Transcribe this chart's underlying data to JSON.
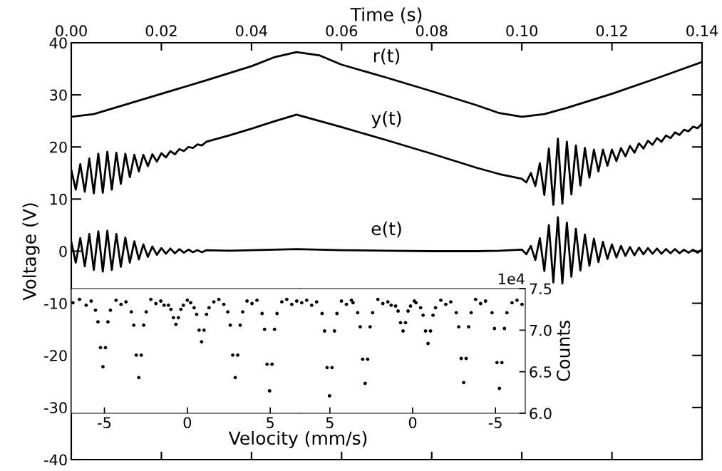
{
  "chart_data": [
    {
      "type": "line",
      "xlabel": "Time (s)",
      "ylabel": "Voltage (V)",
      "xlim": [
        0,
        0.14
      ],
      "xticks": [
        {
          "value": 0,
          "label": "0.00"
        },
        {
          "value": 0.02,
          "label": "0.02"
        },
        {
          "value": 0.04,
          "label": "0.04"
        },
        {
          "value": 0.06,
          "label": "0.06"
        },
        {
          "value": 0.08,
          "label": "0.08"
        },
        {
          "value": 0.1,
          "label": "0.10"
        },
        {
          "value": 0.12,
          "label": "0.12"
        },
        {
          "value": 0.14,
          "label": "0.14"
        }
      ],
      "ylim": [
        -40,
        40
      ],
      "yticks": [
        -40,
        -30,
        -20,
        -10,
        0,
        10,
        20,
        30,
        40
      ],
      "grid": false,
      "legend": false,
      "annotations": [
        "r(t)",
        "y(t)",
        "e(t)"
      ],
      "series": [
        {
          "color": "#000000",
          "x": [
            0,
            0.005,
            0.01,
            0.02,
            0.03,
            0.04,
            0.045,
            0.05,
            0.055,
            0.06,
            0.07,
            0.08,
            0.09,
            0.095,
            0.1,
            0.105,
            0.11,
            0.12,
            0.13,
            0.14
          ],
          "values": [
            25.8,
            26.3,
            27.6,
            30.2,
            32.8,
            35.5,
            37.2,
            38.2,
            37.6,
            35.8,
            33.3,
            30.7,
            28.0,
            26.5,
            25.8,
            26.3,
            27.5,
            30.2,
            33.2,
            36.3
          ]
        },
        {
          "color": "#000000",
          "x": [
            0,
            0.001,
            0.002,
            0.003,
            0.004,
            0.005,
            0.006,
            0.007,
            0.008,
            0.009,
            0.01,
            0.011,
            0.012,
            0.013,
            0.014,
            0.015,
            0.016,
            0.017,
            0.018,
            0.019,
            0.02,
            0.021,
            0.022,
            0.023,
            0.024,
            0.025,
            0.026,
            0.027,
            0.028,
            0.029,
            0.03,
            0.035,
            0.04,
            0.045,
            0.05,
            0.055,
            0.06,
            0.07,
            0.08,
            0.09,
            0.095,
            0.1,
            0.101,
            0.102,
            0.103,
            0.104,
            0.105,
            0.106,
            0.107,
            0.108,
            0.109,
            0.11,
            0.111,
            0.112,
            0.113,
            0.114,
            0.115,
            0.116,
            0.117,
            0.118,
            0.119,
            0.12,
            0.121,
            0.122,
            0.123,
            0.124,
            0.125,
            0.126,
            0.127,
            0.128,
            0.129,
            0.13,
            0.131,
            0.132,
            0.133,
            0.134,
            0.135,
            0.136,
            0.137,
            0.138,
            0.139,
            0.14
          ],
          "values": [
            15.6,
            11.8,
            16.7,
            11.4,
            17.8,
            11.1,
            18.7,
            11.2,
            19.1,
            11.8,
            18.9,
            12.9,
            18.7,
            14.2,
            18.5,
            15.3,
            18.5,
            16.3,
            18.6,
            17.2,
            18.8,
            18.0,
            19.2,
            18.6,
            19.6,
            19.2,
            20.0,
            19.8,
            20.5,
            20.3,
            21.0,
            22.2,
            23.5,
            24.9,
            26.2,
            25.0,
            23.8,
            21.3,
            18.7,
            16.0,
            14.8,
            13.9,
            13.2,
            15.0,
            12.5,
            16.9,
            10.8,
            19.7,
            8.9,
            21.6,
            9.1,
            21.0,
            10.9,
            20.3,
            12.6,
            19.8,
            14.1,
            19.5,
            15.3,
            19.5,
            16.4,
            19.5,
            17.3,
            19.8,
            18.2,
            20.2,
            18.9,
            20.7,
            19.7,
            21.2,
            20.4,
            21.7,
            21.0,
            22.2,
            21.7,
            22.8,
            22.3,
            23.3,
            23.0,
            23.9,
            23.6,
            24.5
          ]
        },
        {
          "color": "#000000",
          "x": [
            0,
            0.001,
            0.002,
            0.003,
            0.004,
            0.005,
            0.006,
            0.007,
            0.008,
            0.009,
            0.01,
            0.011,
            0.012,
            0.013,
            0.014,
            0.015,
            0.016,
            0.017,
            0.018,
            0.019,
            0.02,
            0.021,
            0.022,
            0.023,
            0.024,
            0.025,
            0.026,
            0.027,
            0.028,
            0.029,
            0.03,
            0.035,
            0.04,
            0.05,
            0.06,
            0.07,
            0.08,
            0.09,
            0.095,
            0.1,
            0.101,
            0.102,
            0.103,
            0.104,
            0.105,
            0.106,
            0.107,
            0.108,
            0.109,
            0.11,
            0.111,
            0.112,
            0.113,
            0.114,
            0.115,
            0.116,
            0.117,
            0.118,
            0.119,
            0.12,
            0.121,
            0.122,
            0.123,
            0.124,
            0.125,
            0.126,
            0.127,
            0.128,
            0.129,
            0.13,
            0.131,
            0.132,
            0.133,
            0.134,
            0.135,
            0.136,
            0.137,
            0.138,
            0.139,
            0.14
          ],
          "values": [
            1.8,
            -2.2,
            2.5,
            -2.9,
            3.3,
            -3.6,
            3.8,
            -3.9,
            3.9,
            -3.6,
            3.3,
            -3.0,
            2.6,
            -2.2,
            1.9,
            -1.6,
            1.3,
            -1.1,
            0.9,
            -0.7,
            0.6,
            -0.5,
            0.5,
            -0.4,
            0.4,
            -0.3,
            0.3,
            -0.2,
            0.2,
            -0.2,
            0.2,
            0.1,
            0.2,
            0.4,
            0.2,
            0.1,
            0,
            0,
            0.1,
            0.3,
            -0.6,
            1.0,
            -1.7,
            2.5,
            -3.8,
            5.0,
            -6.0,
            6.5,
            -6.2,
            5.5,
            -4.9,
            4.3,
            -3.7,
            3.2,
            -2.8,
            2.4,
            -2.1,
            1.8,
            -1.5,
            1.3,
            -1.2,
            1.0,
            -0.9,
            0.8,
            -0.8,
            0.7,
            -0.6,
            0.6,
            -0.5,
            0.5,
            -0.5,
            0.4,
            -0.4,
            0.4,
            -0.4,
            0.3,
            -0.3,
            0.3,
            -0.3,
            0.3
          ]
        }
      ]
    },
    {
      "type": "scatter",
      "xlabel": "Velocity (mm/s)",
      "marker": "circle",
      "grid": false,
      "legend": false,
      "tick_labels": "x",
      "xlim": [
        -7.0,
        6.8
      ],
      "xticks": [
        -5,
        0,
        5
      ],
      "ylim": [
        6.0,
        7.5
      ],
      "series": [
        {
          "color": "#000000",
          "x": [
            -6.9,
            -6.5,
            -6.1,
            -5.8,
            -4.3,
            -4.0,
            -3.7,
            -2.2,
            -1.9,
            -1.6,
            -1.4,
            0.0,
            0.2,
            1.6,
            1.9,
            2.2,
            3.6,
            3.9,
            4.2,
            5.7,
            6.0,
            6.3,
            6.6,
            -5.54,
            -5.39,
            -5.24,
            -5.09,
            -4.94,
            -4.79,
            -4.64,
            -3.38,
            -3.23,
            -3.08,
            -2.93,
            -2.78,
            -2.63,
            -2.48,
            -1.14,
            -0.99,
            -0.84,
            -0.69,
            -0.54,
            -0.39,
            -0.24,
            0.41,
            0.56,
            0.71,
            0.86,
            1.01,
            1.16,
            1.31,
            2.44,
            2.59,
            2.74,
            2.89,
            3.04,
            3.19,
            3.34,
            4.51,
            4.66,
            4.81,
            4.96,
            5.11,
            5.26,
            5.41
          ],
          "values": [
            7.33,
            7.37,
            7.3,
            7.35,
            7.36,
            7.31,
            7.34,
            7.37,
            7.32,
            7.35,
            7.3,
            7.36,
            7.33,
            7.34,
            7.37,
            7.31,
            7.35,
            7.32,
            7.36,
            7.34,
            7.37,
            7.31,
            7.35,
            7.24,
            7.1,
            6.79,
            6.56,
            6.79,
            7.1,
            7.24,
            7.22,
            7.06,
            6.7,
            6.43,
            6.7,
            7.06,
            7.22,
            7.3,
            7.25,
            7.15,
            7.07,
            7.15,
            7.25,
            7.3,
            7.27,
            7.19,
            7.0,
            6.86,
            7.0,
            7.19,
            7.27,
            7.22,
            7.06,
            6.7,
            6.43,
            6.7,
            7.06,
            7.22,
            7.2,
            7.01,
            6.59,
            6.27,
            6.59,
            7.01,
            7.2
          ]
        }
      ]
    },
    {
      "type": "scatter",
      "ylabel": "Counts",
      "marker": "circle",
      "grid": false,
      "legend": false,
      "xlim": [
        6.8,
        -6.8
      ],
      "xticks": [
        5,
        0,
        -5
      ],
      "ylim": [
        6.0,
        7.5
      ],
      "yticks": [
        {
          "value": 6,
          "label": "6.0"
        },
        6.5,
        {
          "value": 7,
          "label": "7.0"
        },
        7.5
      ],
      "annotations": [
        "1e4"
      ],
      "series": [
        {
          "color": "#000000",
          "x": [
            6.7,
            6.4,
            6.1,
            5.8,
            4.3,
            4.0,
            3.7,
            3.6,
            2.1,
            1.8,
            1.5,
            1.3,
            -0.1,
            -0.2,
            -1.7,
            -2.0,
            -2.3,
            -3.8,
            -4.1,
            -4.4,
            -6.0,
            -6.3,
            -6.6,
            5.47,
            5.32,
            5.17,
            5.02,
            4.87,
            4.72,
            4.57,
            3.32,
            3.17,
            3.02,
            2.87,
            2.72,
            2.57,
            2.42,
            1.03,
            0.88,
            0.73,
            0.58,
            0.43,
            0.28,
            0.13,
            -0.48,
            -0.63,
            -0.78,
            -0.93,
            -1.08,
            -1.23,
            -1.38,
            -2.63,
            -2.78,
            -2.93,
            -3.08,
            -3.23,
            -3.38,
            -3.53,
            -4.79,
            -4.94,
            -5.09,
            -5.24,
            -5.39,
            -5.54,
            -5.69
          ],
          "values": [
            7.33,
            7.36,
            7.3,
            7.34,
            7.35,
            7.31,
            7.36,
            7.33,
            7.37,
            7.32,
            7.34,
            7.3,
            7.35,
            7.33,
            7.36,
            7.31,
            7.34,
            7.37,
            7.32,
            7.35,
            7.33,
            7.36,
            7.31,
            7.2,
            6.99,
            6.55,
            6.21,
            6.55,
            6.99,
            7.2,
            7.21,
            7.04,
            6.65,
            6.36,
            6.65,
            7.04,
            7.21,
            7.29,
            7.23,
            7.09,
            6.99,
            7.09,
            7.23,
            7.29,
            7.27,
            7.18,
            6.99,
            6.84,
            6.99,
            7.18,
            7.27,
            7.21,
            7.04,
            6.66,
            6.37,
            6.66,
            7.04,
            7.21,
            7.21,
            7.02,
            6.61,
            6.3,
            6.61,
            7.02,
            7.21
          ]
        }
      ]
    }
  ]
}
